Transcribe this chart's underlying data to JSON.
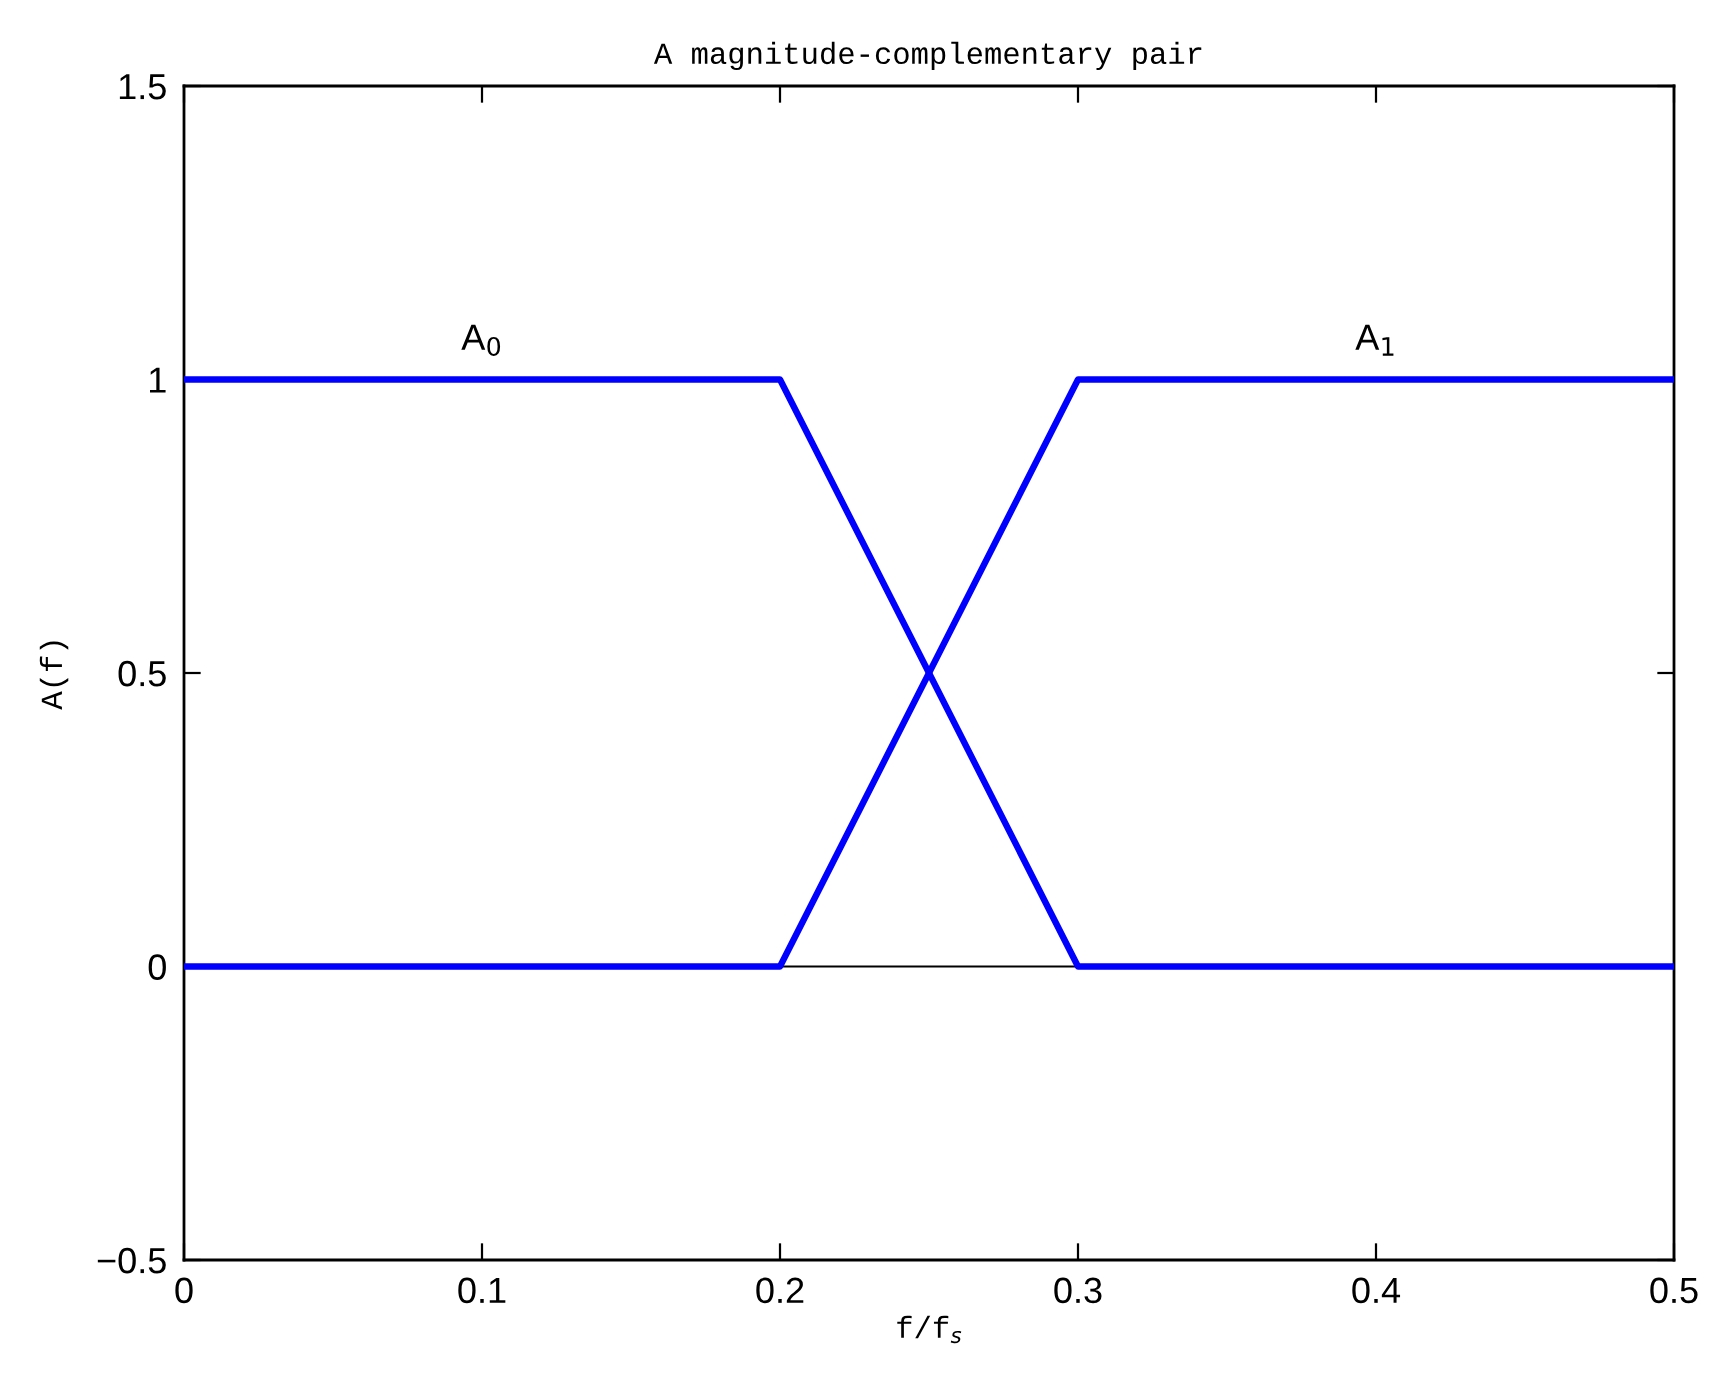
{
  "chart_data": {
    "type": "line",
    "title": "A magnitude-complementary pair",
    "xlabel": "f/f$_{s}$",
    "ylabel": "A(f)",
    "series": [
      {
        "name": "A$_{0}$",
        "color": "#0000ff",
        "x": [
          0,
          0.2,
          0.3,
          0.5
        ],
        "values": [
          1,
          1,
          0,
          0
        ]
      },
      {
        "name": "A$_{1}$",
        "color": "#0000ff",
        "x": [
          0,
          0.2,
          0.3,
          0.5
        ],
        "values": [
          0,
          0,
          1,
          1
        ]
      }
    ],
    "xlim": [
      0,
      0.5
    ],
    "xticks": [
      0,
      0.1,
      0.2,
      0.3,
      0.4,
      0.5
    ],
    "ylim": [
      -0.5,
      1.5
    ],
    "yticks": [
      {
        "value": -0.5,
        "label": "−0.5"
      },
      0,
      0.5,
      1,
      1.5
    ],
    "ref_lines": [
      {
        "axis": "y",
        "value": 0,
        "color": "#000000"
      }
    ],
    "grid": false,
    "legend": false,
    "marker": "none",
    "line_style": "solid"
  }
}
